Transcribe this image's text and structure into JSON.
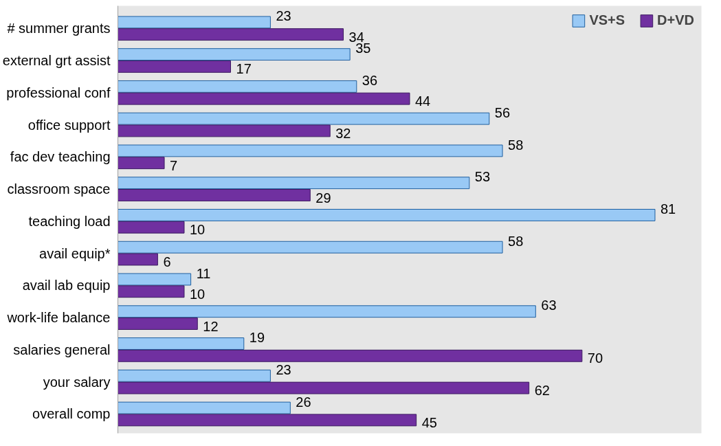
{
  "chart_data": {
    "type": "bar",
    "orientation": "horizontal",
    "categories": [
      "# summer grants",
      "external grt assist",
      "professional conf",
      "office support",
      "fac dev teaching",
      "classroom space",
      "teaching load",
      "avail equip*",
      "avail lab equip",
      "work-life balance",
      "salaries general",
      "your salary",
      "overall comp"
    ],
    "series": [
      {
        "name": "VS+S",
        "color": "#99c9f5",
        "values": [
          23,
          35,
          36,
          56,
          58,
          53,
          81,
          58,
          11,
          63,
          19,
          23,
          26
        ]
      },
      {
        "name": "D+VD",
        "color": "#7030a0",
        "values": [
          34,
          17,
          44,
          32,
          7,
          29,
          10,
          6,
          10,
          12,
          70,
          62,
          45
        ]
      }
    ],
    "xlim": [
      0,
      88
    ],
    "data_labels": true,
    "legend": "top right",
    "tick_labels": "y"
  }
}
